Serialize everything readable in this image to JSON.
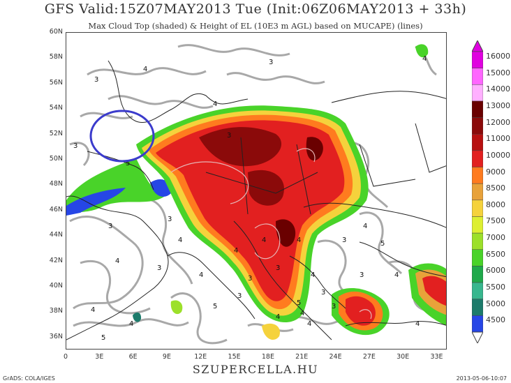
{
  "header": {
    "title": "GFS Valid:15Z07MAY2013 Tue (Init:06Z06MAY2013 + 33h)",
    "subtitle": "Max Cloud Top (shaded) & Height of EL (10E3 m AGL) based on MUCAPE) (lines)"
  },
  "map": {
    "lat_labels": [
      "60N",
      "58N",
      "56N",
      "54N",
      "52N",
      "50N",
      "48N",
      "46N",
      "44N",
      "42N",
      "40N",
      "38N",
      "36N"
    ],
    "lon_labels": [
      "0",
      "3E",
      "6E",
      "9E",
      "12E",
      "15E",
      "18E",
      "21E",
      "24E",
      "27E",
      "30E",
      "33E"
    ],
    "annotation": "circled area near 52N 3E-6E",
    "contour_labels": [
      "3",
      "4",
      "5",
      "3",
      "4",
      "4",
      "3",
      "4",
      "3",
      "4",
      "5",
      "4",
      "3",
      "4",
      "3",
      "5",
      "4",
      "3",
      "4",
      "4",
      "3",
      "3",
      "4",
      "3",
      "4",
      "5",
      "3",
      "4",
      "4",
      "3",
      "5",
      "4",
      "3",
      "4",
      "4",
      "3",
      "4"
    ],
    "colors": {
      "land_outline": "#222222",
      "contour_gray": "#a8a8a8",
      "ring": "#3b3bcc"
    }
  },
  "colorbar": {
    "labels": [
      "16000",
      "15000",
      "14000",
      "13000",
      "12000",
      "11000",
      "10000",
      "9000",
      "8500",
      "8000",
      "7500",
      "7000",
      "6500",
      "6000",
      "5500",
      "5000",
      "4500"
    ],
    "colors": [
      "#e000e0",
      "#ff66ff",
      "#ffb0ff",
      "#6a0000",
      "#8b0a0a",
      "#b81010",
      "#e22020",
      "#ff7b1f",
      "#e8a23a",
      "#f5d23c",
      "#ddef31",
      "#9ce02a",
      "#49d329",
      "#1fa94a",
      "#38b78e",
      "#1c7b6b",
      "#2646e6"
    ]
  },
  "footer": {
    "brand": "SZUPERCELLA.HU",
    "left": "GrADS: COLA/IGES",
    "right": "2013-05-06-10:07"
  }
}
